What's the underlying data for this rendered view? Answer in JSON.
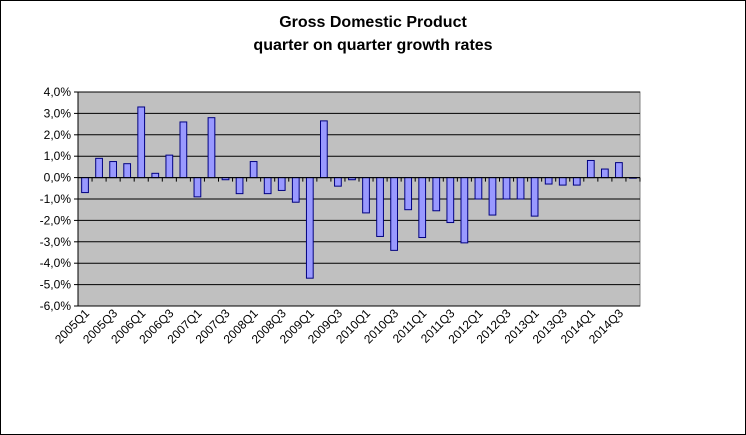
{
  "chart_data": {
    "type": "bar",
    "title": "Gross Domestic Product",
    "subtitle": "quarter on quarter growth rates",
    "xlabel": "",
    "ylabel": "",
    "ylim": [
      -6.0,
      4.0
    ],
    "ytick_values": [
      4,
      3,
      2,
      1,
      0,
      -1,
      -2,
      -3,
      -4,
      -5,
      -6
    ],
    "ytick_labels": [
      "4,0%",
      "3,0%",
      "2,0%",
      "1,0%",
      "0,0%",
      "-1,0%",
      "-2,0%",
      "-3,0%",
      "-4,0%",
      "-5,0%",
      "-6,0%"
    ],
    "grid": true,
    "legend": "none",
    "colors": {
      "bar": "#9999ff",
      "bar_stroke": "#000080",
      "plot_bg": "#c0c0c0",
      "grid": "#000000"
    },
    "categories": [
      "2005Q1",
      "2005Q2",
      "2005Q3",
      "2005Q4",
      "2006Q1",
      "2006Q2",
      "2006Q3",
      "2006Q4",
      "2007Q1",
      "2007Q2",
      "2007Q3",
      "2007Q4",
      "2008Q1",
      "2008Q2",
      "2008Q3",
      "2008Q4",
      "2009Q1",
      "2009Q2",
      "2009Q3",
      "2009Q4",
      "2010Q1",
      "2010Q2",
      "2010Q3",
      "2010Q4",
      "2011Q1",
      "2011Q2",
      "2011Q3",
      "2011Q4",
      "2012Q1",
      "2012Q2",
      "2012Q3",
      "2012Q4",
      "2013Q1",
      "2013Q2",
      "2013Q3",
      "2013Q4",
      "2014Q1",
      "2014Q2",
      "2014Q3",
      "2014Q4"
    ],
    "values": [
      -0.7,
      0.9,
      0.75,
      0.65,
      3.3,
      0.2,
      1.05,
      2.6,
      -0.9,
      2.8,
      -0.1,
      -0.75,
      0.75,
      -0.75,
      -0.6,
      -1.15,
      -4.7,
      2.65,
      -0.4,
      -0.1,
      -1.65,
      -2.75,
      -3.4,
      -1.5,
      -2.8,
      -1.55,
      -2.1,
      -3.05,
      -1.0,
      -1.75,
      -1.0,
      -1.0,
      -1.8,
      -0.3,
      -0.35,
      -0.35,
      0.8,
      0.4,
      0.7,
      0.0
    ],
    "tick_label_every": 2
  }
}
